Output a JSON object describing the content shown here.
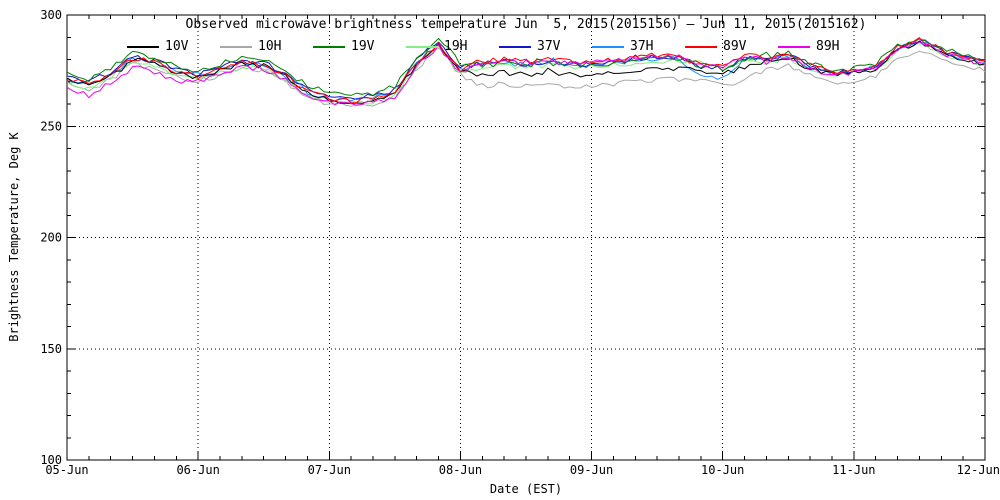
{
  "chart_data": {
    "type": "line",
    "title": "Observed microwave brightness temperature Jun  5, 2015(2015156) – Jun 11, 2015(2015162)",
    "xlabel": "Date (EST)",
    "ylabel": "Brightness Temperature, Deg K",
    "ylim": [
      100,
      300
    ],
    "y_major_ticks": [
      100,
      150,
      200,
      250,
      300
    ],
    "y_minor_step": 10,
    "x_tick_labels": [
      "05-Jun",
      "06-Jun",
      "07-Jun",
      "08-Jun",
      "09-Jun",
      "10-Jun",
      "11-Jun",
      "12-Jun"
    ],
    "x_span_days": 7,
    "x_minor_step_hours": 4,
    "x_sample_interval_hours": 4,
    "grid": "dotted at major ticks",
    "legend_position": "top-inside-row",
    "noise_amplitude": 1.2,
    "series": [
      {
        "name": "10V",
        "color": "#000000",
        "values": [
          271,
          268,
          273,
          280,
          278,
          274,
          272,
          275,
          278,
          277,
          272,
          265,
          262,
          261,
          262,
          265,
          278,
          287,
          275,
          273,
          274,
          273,
          274,
          273,
          273,
          274,
          275,
          276,
          276,
          275,
          274,
          276,
          279,
          281,
          276,
          273,
          274,
          276,
          284,
          288,
          283,
          280,
          278
        ]
      },
      {
        "name": "10H",
        "color": "#a8a8a8",
        "values": [
          269,
          266,
          271,
          278,
          276,
          272,
          270,
          273,
          276,
          275,
          270,
          263,
          260,
          259,
          260,
          263,
          276,
          285,
          273,
          268,
          269,
          268,
          269,
          268,
          268,
          269,
          270,
          271,
          271,
          270,
          269,
          271,
          275.5,
          277.5,
          272.5,
          269.5,
          270.5,
          272.5,
          280.5,
          284.5,
          279.5,
          276.5,
          274.5
        ]
      },
      {
        "name": "19V",
        "color": "#008000",
        "values": [
          274,
          271,
          276,
          283,
          281,
          277,
          275,
          278,
          281,
          280,
          275,
          268,
          265,
          264,
          265,
          268,
          281,
          290,
          278,
          277.5,
          278.5,
          277.5,
          278.5,
          277.5,
          277.5,
          278.5,
          279.5,
          280.5,
          280.5,
          277,
          276,
          280.5,
          281,
          283,
          278,
          275,
          276,
          278,
          286,
          290,
          285,
          282,
          280
        ]
      },
      {
        "name": "19H",
        "color": "#84ee84",
        "values": [
          270,
          267,
          272,
          279,
          277,
          273,
          271,
          274,
          277,
          276,
          271,
          264,
          261,
          260,
          261,
          264,
          277,
          286,
          274,
          276.5,
          277.5,
          276.5,
          277.5,
          276.5,
          276.5,
          277.5,
          278.5,
          279.5,
          279.5,
          278.5,
          277.5,
          279.5,
          278.5,
          280.5,
          275.5,
          272.5,
          273.5,
          275.5,
          283.5,
          287.5,
          282.5,
          279.5,
          277.5
        ]
      },
      {
        "name": "37V",
        "color": "#1616cc",
        "values": [
          272.5,
          269.5,
          274.5,
          281.5,
          279.5,
          275.5,
          273.5,
          276.5,
          279.5,
          278.5,
          273.5,
          266.5,
          263.5,
          262.5,
          263.5,
          266.5,
          279.5,
          288.5,
          276.5,
          278,
          279,
          278,
          279,
          278,
          278,
          279,
          280,
          281,
          281,
          277,
          276,
          281,
          280,
          282,
          277,
          274,
          275,
          277,
          285,
          289,
          284,
          281,
          279
        ]
      },
      {
        "name": "37H",
        "color": "#1e90ff",
        "values": [
          271.5,
          268.5,
          273.5,
          280.5,
          278.5,
          274.5,
          272.5,
          275.5,
          278.5,
          277.5,
          272.5,
          265.5,
          262.5,
          261.5,
          262.5,
          265.5,
          278.5,
          287.5,
          275.5,
          277.5,
          278.5,
          277.5,
          278.5,
          277.5,
          277.5,
          278.5,
          279.5,
          280.5,
          280.5,
          273,
          272,
          280.5,
          279.5,
          281.5,
          276.5,
          273.5,
          274.5,
          276.5,
          284.5,
          288.5,
          283.5,
          280.5,
          278.5
        ]
      },
      {
        "name": "89V",
        "color": "#ff0000",
        "values": [
          271.5,
          268.5,
          273.5,
          280.5,
          278.5,
          274.5,
          272.5,
          275.5,
          278.5,
          277.5,
          272.5,
          265.5,
          262.5,
          261.5,
          262.5,
          265.5,
          278.5,
          287.5,
          275.5,
          279,
          280,
          279,
          280,
          279,
          279,
          280,
          281,
          282,
          282,
          277.5,
          276.5,
          282,
          280.5,
          282.5,
          277.5,
          274.5,
          275.5,
          277.5,
          285.5,
          289.5,
          284.5,
          281.5,
          279.5
        ]
      },
      {
        "name": "89H",
        "color": "#ee00ee",
        "values": [
          267.5,
          264.5,
          269.5,
          276.5,
          274.5,
          270.5,
          270.5,
          273.5,
          276.5,
          275.5,
          270.5,
          263.5,
          260.5,
          259.5,
          260.5,
          263.5,
          276.5,
          285.5,
          273.5,
          278.5,
          279.5,
          278.5,
          279.5,
          278.5,
          278.5,
          279.5,
          280.5,
          281.5,
          281.5,
          277,
          276,
          281.5,
          279,
          281,
          276,
          273,
          274,
          276,
          284,
          288,
          283,
          280,
          278
        ]
      }
    ]
  }
}
